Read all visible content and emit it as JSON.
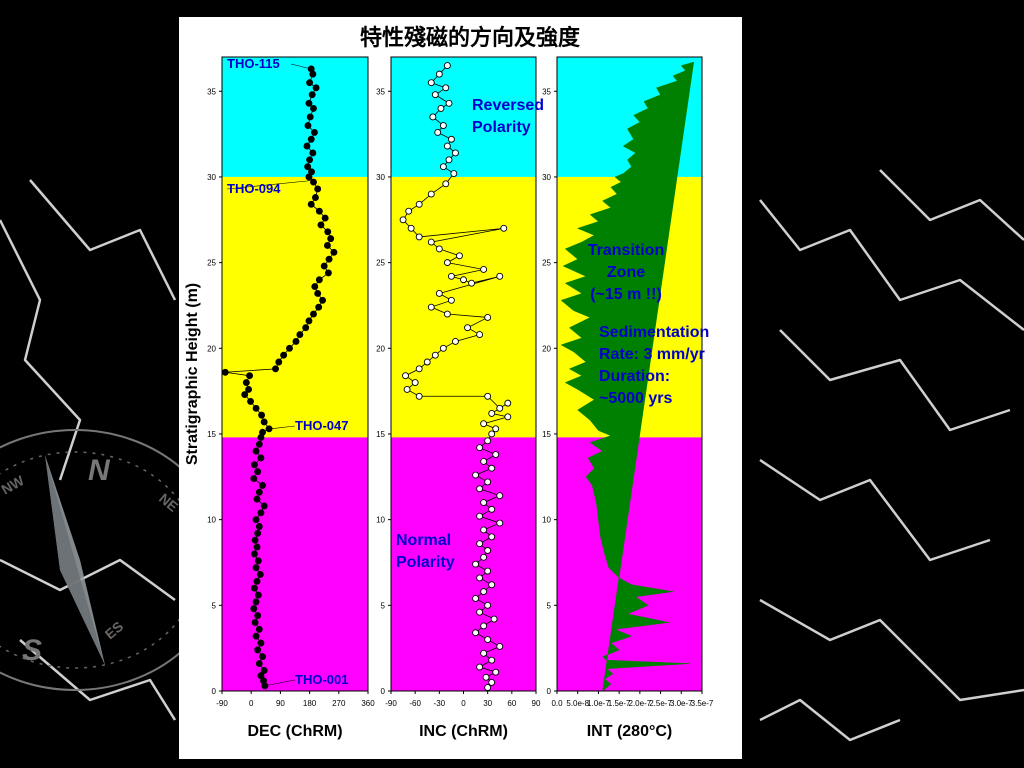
{
  "slide": {
    "title": "特性殘磁的方向及強度",
    "background_color": "#000000",
    "compass_labels": {
      "n": "N",
      "s": "S",
      "nw": "NW",
      "ne": "NE",
      "es": "ES"
    },
    "compass_icon": "compass-rose-icon"
  },
  "colors": {
    "reversed_zone": "#00FFFF",
    "transition_zone": "#FFFF00",
    "normal_zone": "#FF00FF",
    "int_fill": "#008000",
    "annotation_blue": "#0000CC"
  },
  "chart_data": [
    {
      "type": "scatter",
      "id": "dec",
      "xlabel": "DEC (ChRM)",
      "ylabel": "Stratigraphic Height (m)",
      "xlim": [
        -90,
        360
      ],
      "ylim": [
        0,
        37
      ],
      "xticks": [
        -90,
        0,
        90,
        180,
        270,
        360
      ],
      "yticks": [
        0,
        5,
        10,
        15,
        20,
        25,
        30,
        35
      ],
      "marker": "filled",
      "sample_labels": [
        {
          "text": "THO-115",
          "height": 36.3,
          "value": 185
        },
        {
          "text": "THO-094",
          "height": 29.8,
          "value": 190
        },
        {
          "text": "THO-047",
          "height": 15.3,
          "value": 60
        },
        {
          "text": "THO-001",
          "height": 0.3,
          "value": 40
        }
      ],
      "points": [
        [
          185,
          36.3
        ],
        [
          190,
          36
        ],
        [
          180,
          35.5
        ],
        [
          200,
          35.2
        ],
        [
          188,
          34.8
        ],
        [
          178,
          34.3
        ],
        [
          192,
          34
        ],
        [
          182,
          33.5
        ],
        [
          175,
          33
        ],
        [
          195,
          32.6
        ],
        [
          185,
          32.2
        ],
        [
          172,
          31.8
        ],
        [
          190,
          31.4
        ],
        [
          180,
          31
        ],
        [
          174,
          30.6
        ],
        [
          186,
          30.3
        ],
        [
          178,
          30
        ],
        [
          192,
          29.7
        ],
        [
          205,
          29.3
        ],
        [
          198,
          28.8
        ],
        [
          185,
          28.4
        ],
        [
          210,
          28
        ],
        [
          228,
          27.6
        ],
        [
          215,
          27.2
        ],
        [
          236,
          26.8
        ],
        [
          245,
          26.4
        ],
        [
          235,
          26
        ],
        [
          255,
          25.6
        ],
        [
          240,
          25.2
        ],
        [
          225,
          24.8
        ],
        [
          238,
          24.4
        ],
        [
          210,
          24
        ],
        [
          196,
          23.6
        ],
        [
          205,
          23.2
        ],
        [
          220,
          22.8
        ],
        [
          208,
          22.4
        ],
        [
          192,
          22
        ],
        [
          178,
          21.6
        ],
        [
          168,
          21.2
        ],
        [
          150,
          20.8
        ],
        [
          138,
          20.4
        ],
        [
          118,
          20
        ],
        [
          100,
          19.6
        ],
        [
          85,
          19.2
        ],
        [
          75,
          18.8
        ],
        [
          -80,
          18.6
        ],
        [
          -5,
          18.4
        ],
        [
          -15,
          18
        ],
        [
          -8,
          17.6
        ],
        [
          -20,
          17.3
        ],
        [
          -2,
          16.9
        ],
        [
          15,
          16.5
        ],
        [
          32,
          16.1
        ],
        [
          40,
          15.7
        ],
        [
          55,
          15.3
        ],
        [
          35,
          15.1
        ],
        [
          30,
          14.8
        ],
        [
          25,
          14.4
        ],
        [
          15,
          14
        ],
        [
          30,
          13.6
        ],
        [
          10,
          13.2
        ],
        [
          20,
          12.8
        ],
        [
          8,
          12.4
        ],
        [
          35,
          12
        ],
        [
          25,
          11.6
        ],
        [
          18,
          11.2
        ],
        [
          40,
          10.8
        ],
        [
          30,
          10.4
        ],
        [
          15,
          10
        ],
        [
          25,
          9.6
        ],
        [
          20,
          9.2
        ],
        [
          12,
          8.8
        ],
        [
          18,
          8.4
        ],
        [
          10,
          8
        ],
        [
          22,
          7.6
        ],
        [
          15,
          7.2
        ],
        [
          28,
          6.8
        ],
        [
          18,
          6.4
        ],
        [
          10,
          6
        ],
        [
          22,
          5.6
        ],
        [
          15,
          5.2
        ],
        [
          8,
          4.8
        ],
        [
          20,
          4.4
        ],
        [
          12,
          4
        ],
        [
          25,
          3.6
        ],
        [
          15,
          3.2
        ],
        [
          30,
          2.8
        ],
        [
          20,
          2.4
        ],
        [
          35,
          2
        ],
        [
          25,
          1.6
        ],
        [
          40,
          1.2
        ],
        [
          30,
          0.9
        ],
        [
          38,
          0.6
        ],
        [
          42,
          0.3
        ]
      ]
    },
    {
      "type": "scatter",
      "id": "inc",
      "xlabel": "INC (ChRM)",
      "xlim": [
        -90,
        90
      ],
      "ylim": [
        0,
        37
      ],
      "xticks": [
        -90,
        -60,
        -30,
        0,
        30,
        60,
        90
      ],
      "yticks": [
        0,
        5,
        10,
        15,
        20,
        25,
        30,
        35
      ],
      "marker": "open",
      "points": [
        [
          -20,
          36.5
        ],
        [
          -30,
          36
        ],
        [
          -40,
          35.5
        ],
        [
          -22,
          35.2
        ],
        [
          -35,
          34.8
        ],
        [
          -18,
          34.3
        ],
        [
          -28,
          34
        ],
        [
          -38,
          33.5
        ],
        [
          -25,
          33
        ],
        [
          -32,
          32.6
        ],
        [
          -15,
          32.2
        ],
        [
          -20,
          31.8
        ],
        [
          -10,
          31.4
        ],
        [
          -18,
          31
        ],
        [
          -25,
          30.6
        ],
        [
          -12,
          30.2
        ],
        [
          -22,
          29.6
        ],
        [
          -40,
          29
        ],
        [
          -55,
          28.4
        ],
        [
          -68,
          28
        ],
        [
          -75,
          27.5
        ],
        [
          -65,
          27
        ],
        [
          -55,
          26.5
        ],
        [
          50,
          27
        ],
        [
          -40,
          26.2
        ],
        [
          -30,
          25.8
        ],
        [
          -5,
          25.4
        ],
        [
          -20,
          25
        ],
        [
          25,
          24.6
        ],
        [
          -15,
          24.2
        ],
        [
          0,
          24
        ],
        [
          10,
          23.8
        ],
        [
          45,
          24.2
        ],
        [
          -30,
          23.2
        ],
        [
          -15,
          22.8
        ],
        [
          -40,
          22.4
        ],
        [
          -20,
          22
        ],
        [
          30,
          21.8
        ],
        [
          5,
          21.2
        ],
        [
          20,
          20.8
        ],
        [
          -10,
          20.4
        ],
        [
          -25,
          20
        ],
        [
          -35,
          19.6
        ],
        [
          -45,
          19.2
        ],
        [
          -55,
          18.8
        ],
        [
          -72,
          18.4
        ],
        [
          -60,
          18
        ],
        [
          -70,
          17.6
        ],
        [
          -55,
          17.2
        ],
        [
          30,
          17.2
        ],
        [
          45,
          16.5
        ],
        [
          55,
          16.8
        ],
        [
          35,
          16.2
        ],
        [
          55,
          16
        ],
        [
          25,
          15.6
        ],
        [
          40,
          15.3
        ],
        [
          35,
          15
        ],
        [
          30,
          14.6
        ],
        [
          20,
          14.2
        ],
        [
          40,
          13.8
        ],
        [
          25,
          13.4
        ],
        [
          35,
          13
        ],
        [
          15,
          12.6
        ],
        [
          30,
          12.2
        ],
        [
          20,
          11.8
        ],
        [
          45,
          11.4
        ],
        [
          25,
          11
        ],
        [
          35,
          10.6
        ],
        [
          20,
          10.2
        ],
        [
          45,
          9.8
        ],
        [
          25,
          9.4
        ],
        [
          35,
          9
        ],
        [
          20,
          8.6
        ],
        [
          30,
          8.2
        ],
        [
          25,
          7.8
        ],
        [
          15,
          7.4
        ],
        [
          30,
          7
        ],
        [
          20,
          6.6
        ],
        [
          35,
          6.2
        ],
        [
          25,
          5.8
        ],
        [
          15,
          5.4
        ],
        [
          30,
          5
        ],
        [
          20,
          4.6
        ],
        [
          38,
          4.2
        ],
        [
          25,
          3.8
        ],
        [
          15,
          3.4
        ],
        [
          30,
          3
        ],
        [
          45,
          2.6
        ],
        [
          25,
          2.2
        ],
        [
          35,
          1.8
        ],
        [
          20,
          1.4
        ],
        [
          40,
          1.1
        ],
        [
          28,
          0.8
        ],
        [
          35,
          0.5
        ],
        [
          30,
          0.2
        ]
      ]
    },
    {
      "type": "area",
      "id": "int",
      "xlabel": "INT (280°C)",
      "xlim": [
        0,
        3.5e-07
      ],
      "ylim": [
        0,
        37
      ],
      "xticks": [
        0,
        5e-08,
        1e-07,
        1.5e-07,
        2e-07,
        2.5e-07,
        3e-07,
        3.5e-07
      ],
      "xtick_labels": [
        "0.0",
        "5.0e-8",
        "1.0e-7",
        "1.5e-7",
        "2.0e-7",
        "2.5e-7",
        "3.0e-7",
        "3.5e-7"
      ],
      "yticks": [
        0,
        5,
        10,
        15,
        20,
        25,
        30,
        35
      ],
      "points": [
        [
          1.1e-07,
          0
        ],
        [
          1.3e-07,
          0.4
        ],
        [
          1.15e-07,
          0.7
        ],
        [
          1.35e-07,
          1
        ],
        [
          1.2e-07,
          1.3
        ],
        [
          3.2e-07,
          1.6
        ],
        [
          1.2e-07,
          1.8
        ],
        [
          1.1e-07,
          2
        ],
        [
          1.5e-07,
          2.4
        ],
        [
          1.3e-07,
          2.8
        ],
        [
          1.8e-07,
          3.2
        ],
        [
          1.4e-07,
          3.6
        ],
        [
          2.7e-07,
          4
        ],
        [
          1.7e-07,
          4.5
        ],
        [
          2.2e-07,
          5
        ],
        [
          1.9e-07,
          5.5
        ],
        [
          2.8e-07,
          5.8
        ],
        [
          1.8e-07,
          6.2
        ],
        [
          1.5e-07,
          6.6
        ],
        [
          1.25e-07,
          7.2
        ],
        [
          1.15e-07,
          8
        ],
        [
          1.05e-07,
          9
        ],
        [
          1e-07,
          10
        ],
        [
          9.5e-08,
          11
        ],
        [
          8.5e-08,
          12
        ],
        [
          7e-08,
          12.5
        ],
        [
          9e-08,
          13
        ],
        [
          7.5e-08,
          13.6
        ],
        [
          1.1e-07,
          14
        ],
        [
          8e-08,
          14.5
        ],
        [
          1.3e-07,
          14.9
        ],
        [
          1e-07,
          15.2
        ],
        [
          8e-08,
          15.8
        ],
        [
          5e-08,
          16.4
        ],
        [
          9e-08,
          17
        ],
        [
          5e-08,
          17.6
        ],
        [
          2e-08,
          18
        ],
        [
          6e-08,
          18.4
        ],
        [
          3e-08,
          18.8
        ],
        [
          7e-08,
          19.2
        ],
        [
          4e-08,
          19.8
        ],
        [
          1e-08,
          20.2
        ],
        [
          6e-08,
          20.6
        ],
        [
          3e-08,
          21.2
        ],
        [
          8e-08,
          21.8
        ],
        [
          4e-08,
          22.2
        ],
        [
          1e-08,
          22.8
        ],
        [
          6e-08,
          23.2
        ],
        [
          2e-08,
          23.8
        ],
        [
          7e-08,
          24.2
        ],
        [
          1.5e-08,
          24.8
        ],
        [
          5e-08,
          25.2
        ],
        [
          2e-08,
          25.8
        ],
        [
          6e-08,
          26.2
        ],
        [
          9e-08,
          26.6
        ],
        [
          5e-08,
          27
        ],
        [
          1e-07,
          27.4
        ],
        [
          8e-08,
          27.8
        ],
        [
          1.3e-07,
          28.2
        ],
        [
          1.1e-07,
          28.6
        ],
        [
          1.45e-07,
          29
        ],
        [
          1.3e-07,
          29.4
        ],
        [
          1.55e-07,
          29.7
        ],
        [
          1.4e-07,
          30
        ],
        [
          1.6e-07,
          30.2
        ],
        [
          1.8e-07,
          30.6
        ],
        [
          1.7e-07,
          31
        ],
        [
          1.9e-07,
          31.4
        ],
        [
          1.6e-07,
          31.8
        ],
        [
          1.85e-07,
          32.2
        ],
        [
          1.7e-07,
          32.8
        ],
        [
          2e-07,
          33.2
        ],
        [
          1.85e-07,
          33.6
        ],
        [
          2.2e-07,
          34
        ],
        [
          2.1e-07,
          34.4
        ],
        [
          2.5e-07,
          34.8
        ],
        [
          2.4e-07,
          35.2
        ],
        [
          2.9e-07,
          35.6
        ],
        [
          2.8e-07,
          35.9
        ],
        [
          3.1e-07,
          36.2
        ],
        [
          3e-07,
          36.5
        ],
        [
          3.3e-07,
          36.7
        ]
      ]
    }
  ],
  "zones": {
    "normal": {
      "from": 0,
      "to": 14.8
    },
    "transition": {
      "from": 14.8,
      "to": 30
    },
    "reversed": {
      "from": 30,
      "to": 37
    }
  },
  "annotations": {
    "reversed": [
      "Reversed",
      "Polarity"
    ],
    "normal": [
      "Normal",
      "Polarity"
    ],
    "transition": [
      "Transition",
      "Zone",
      "(~15 m !!)"
    ],
    "sedimentation": [
      "Sedimentation",
      "Rate: 3 mm/yr",
      "Duration:",
      "~5000 yrs"
    ]
  }
}
